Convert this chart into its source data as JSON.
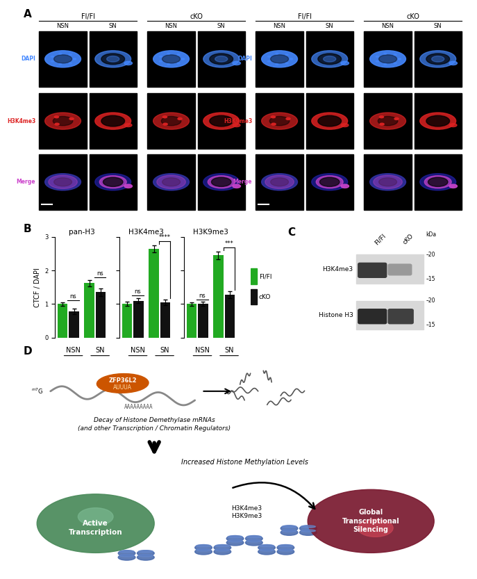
{
  "panel_labels": [
    "A",
    "B",
    "C",
    "D"
  ],
  "panel_A": {
    "groups_left": [
      "Fl/Fl",
      "cKO"
    ],
    "groups_right": [
      "Fl/Fl",
      "cKO"
    ],
    "row_labels_left": [
      "DAPI",
      "H3K4me3",
      "Merge"
    ],
    "row_labels_right": [
      "DAPI",
      "H3K9me3",
      "Merge"
    ],
    "row_colors_left": [
      "#4488ff",
      "#dd2222",
      "#cc44cc"
    ],
    "row_colors_right": [
      "#4488ff",
      "#dd2222",
      "#cc44cc"
    ]
  },
  "panel_B": {
    "titles": [
      "pan-H3",
      "H3K4me3",
      "H3K9me3"
    ],
    "ylabel": "CTCF / DAPI",
    "green_color": "#22aa22",
    "black_color": "#111111",
    "legend_labels": [
      "Fl/Fl",
      "cKO"
    ],
    "pan_H3": {
      "fl_nsn": 1.0,
      "fl_sn": 1.62,
      "cko_nsn": 0.78,
      "cko_sn": 1.35,
      "fl_nsn_err": 0.05,
      "fl_sn_err": 0.1,
      "cko_nsn_err": 0.08,
      "cko_sn_err": 0.12,
      "sig_nsn": "ns",
      "sig_sn": "ns"
    },
    "H3K4me3": {
      "fl_nsn": 1.0,
      "fl_sn": 2.65,
      "cko_nsn": 1.1,
      "cko_sn": 1.05,
      "fl_nsn_err": 0.06,
      "fl_sn_err": 0.1,
      "cko_nsn_err": 0.08,
      "cko_sn_err": 0.08,
      "sig_nsn": "ns",
      "sig_sn": "****"
    },
    "H3K9me3": {
      "fl_nsn": 1.0,
      "fl_sn": 2.45,
      "cko_nsn": 1.0,
      "cko_sn": 1.28,
      "fl_nsn_err": 0.05,
      "fl_sn_err": 0.12,
      "cko_nsn_err": 0.06,
      "cko_sn_err": 0.1,
      "sig_nsn": "ns",
      "sig_sn": "***"
    },
    "ylim": [
      0,
      3.0
    ],
    "yticks": [
      0,
      1,
      2,
      3
    ]
  },
  "panel_C": {
    "col_labels": [
      "Fl/Fl",
      "cKO"
    ],
    "row_labels": [
      "H3K4me3",
      "Histone H3"
    ],
    "kda_label": "kDa"
  },
  "panel_D": {
    "decay_text": "Decay of Histone Demethylase mRNAs\n(and other Transcription / Chromatin Regulators)",
    "methylation_text": "Increased Histone Methylation Levels",
    "left_circle_label": "Active\nTranscription",
    "left_circle_color": "#4a8a5a",
    "right_circle_label": "Global\nTranscriptional\nSilencing",
    "right_circle_color": "#7a1a30",
    "histone_labels": [
      "H3K4me3",
      "H3K9me3"
    ]
  },
  "bg_color": "#ffffff",
  "figure_width": 6.5,
  "figure_height": 8.13
}
